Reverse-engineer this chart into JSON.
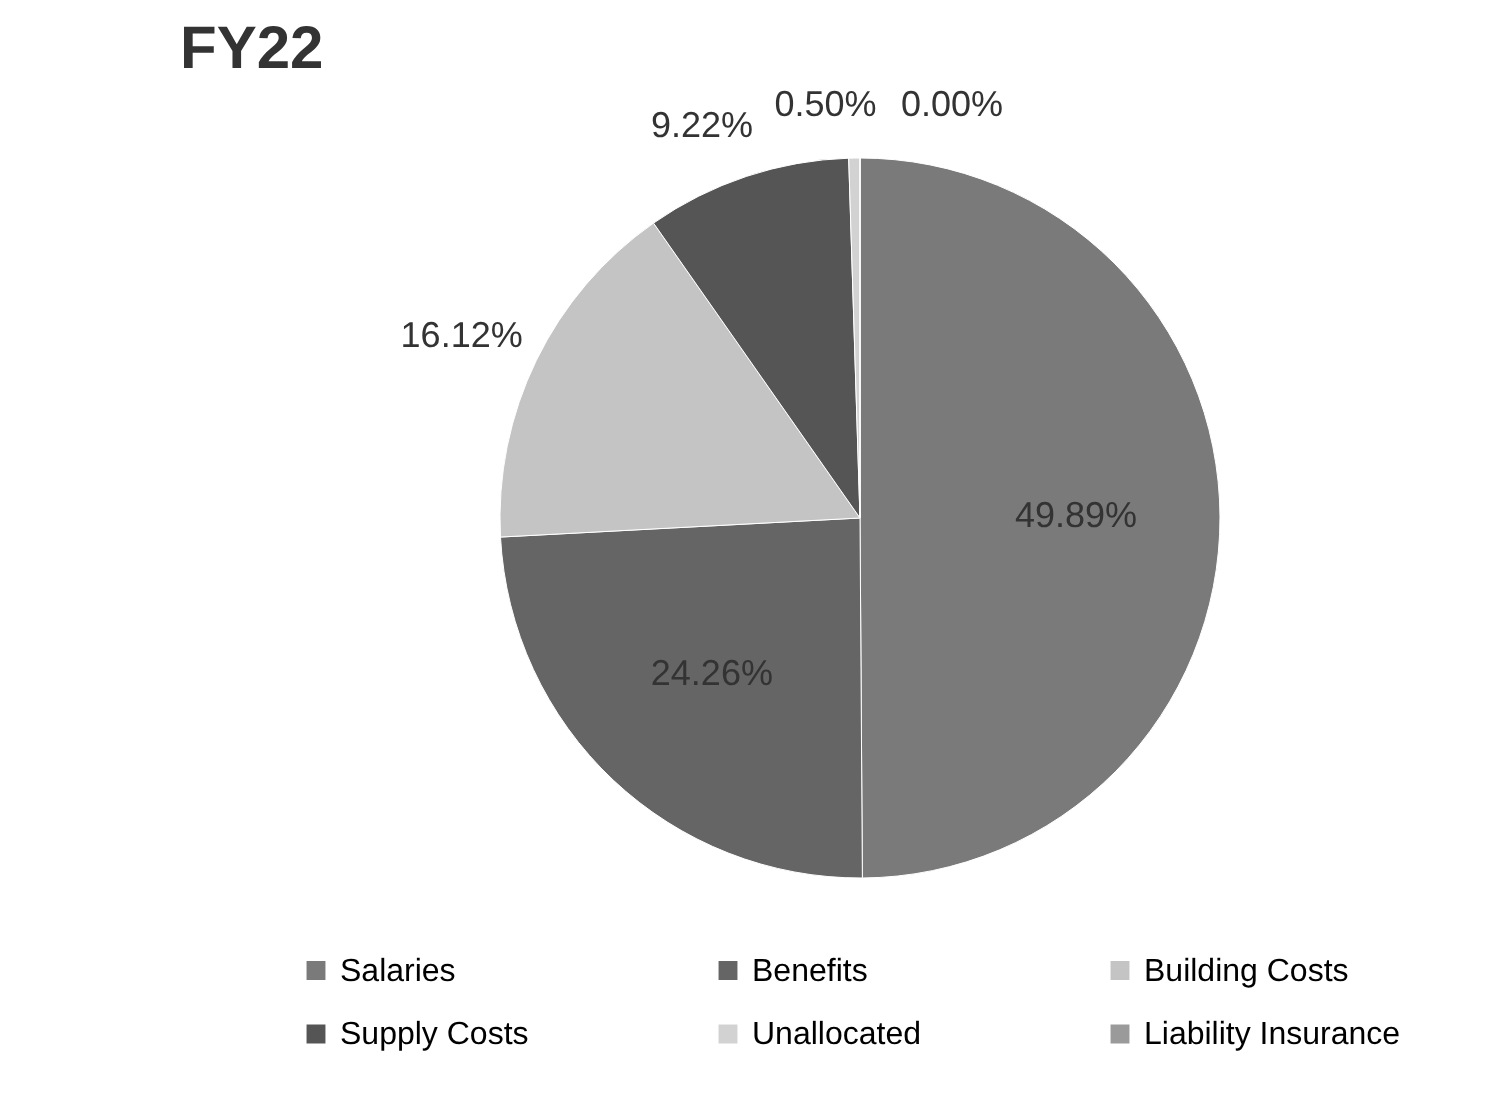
{
  "chart_data": {
    "type": "pie",
    "title": "FY22",
    "categories": [
      "Salaries",
      "Benefits",
      "Building Costs",
      "Supply Costs",
      "Unallocated",
      "Liability Insurance"
    ],
    "values": [
      49.89,
      24.26,
      16.12,
      9.22,
      0.5,
      0.0
    ],
    "value_labels": [
      "49.89%",
      "24.26%",
      "16.12%",
      "9.22%",
      "0.50%",
      "0.00%"
    ],
    "colors": [
      "#7a7a7a",
      "#656565",
      "#c4c4c4",
      "#555555",
      "#d2d2d2",
      "#9a9a9a"
    ],
    "legend": "bottom"
  }
}
